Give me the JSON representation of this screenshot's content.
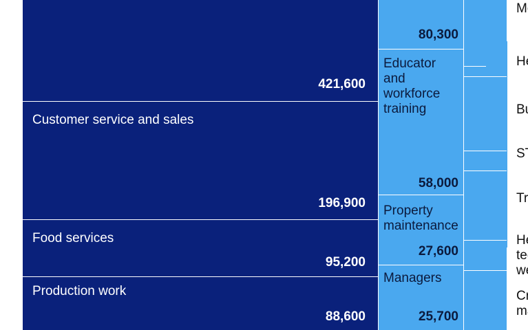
{
  "chart_data": {
    "type": "treemap",
    "title": "",
    "colors": {
      "dark": "#0a217b",
      "light": "#4aa8ef",
      "background": "#ffffff"
    },
    "cells": [
      {
        "label": "",
        "value": 421600,
        "display": "421,600"
      },
      {
        "label": "Customer service and sales",
        "value": 196900,
        "display": "196,900"
      },
      {
        "label": "Food services",
        "value": 95200,
        "display": "95,200"
      },
      {
        "label": "Production work",
        "value": 88600,
        "display": "88,600"
      },
      {
        "label": "",
        "value": 80300,
        "display": "80,300"
      },
      {
        "label": "Educator and workforce training",
        "value": 58000,
        "display": "58,000"
      },
      {
        "label": "Property maintenance",
        "value": 27600,
        "display": "27,600"
      },
      {
        "label": "Managers",
        "value": 25700,
        "display": "25,700"
      }
    ],
    "side_labels": [
      "Mo an",
      "He",
      "Bu",
      "ST",
      "Tra",
      "He tec we",
      "Cr ma"
    ]
  }
}
